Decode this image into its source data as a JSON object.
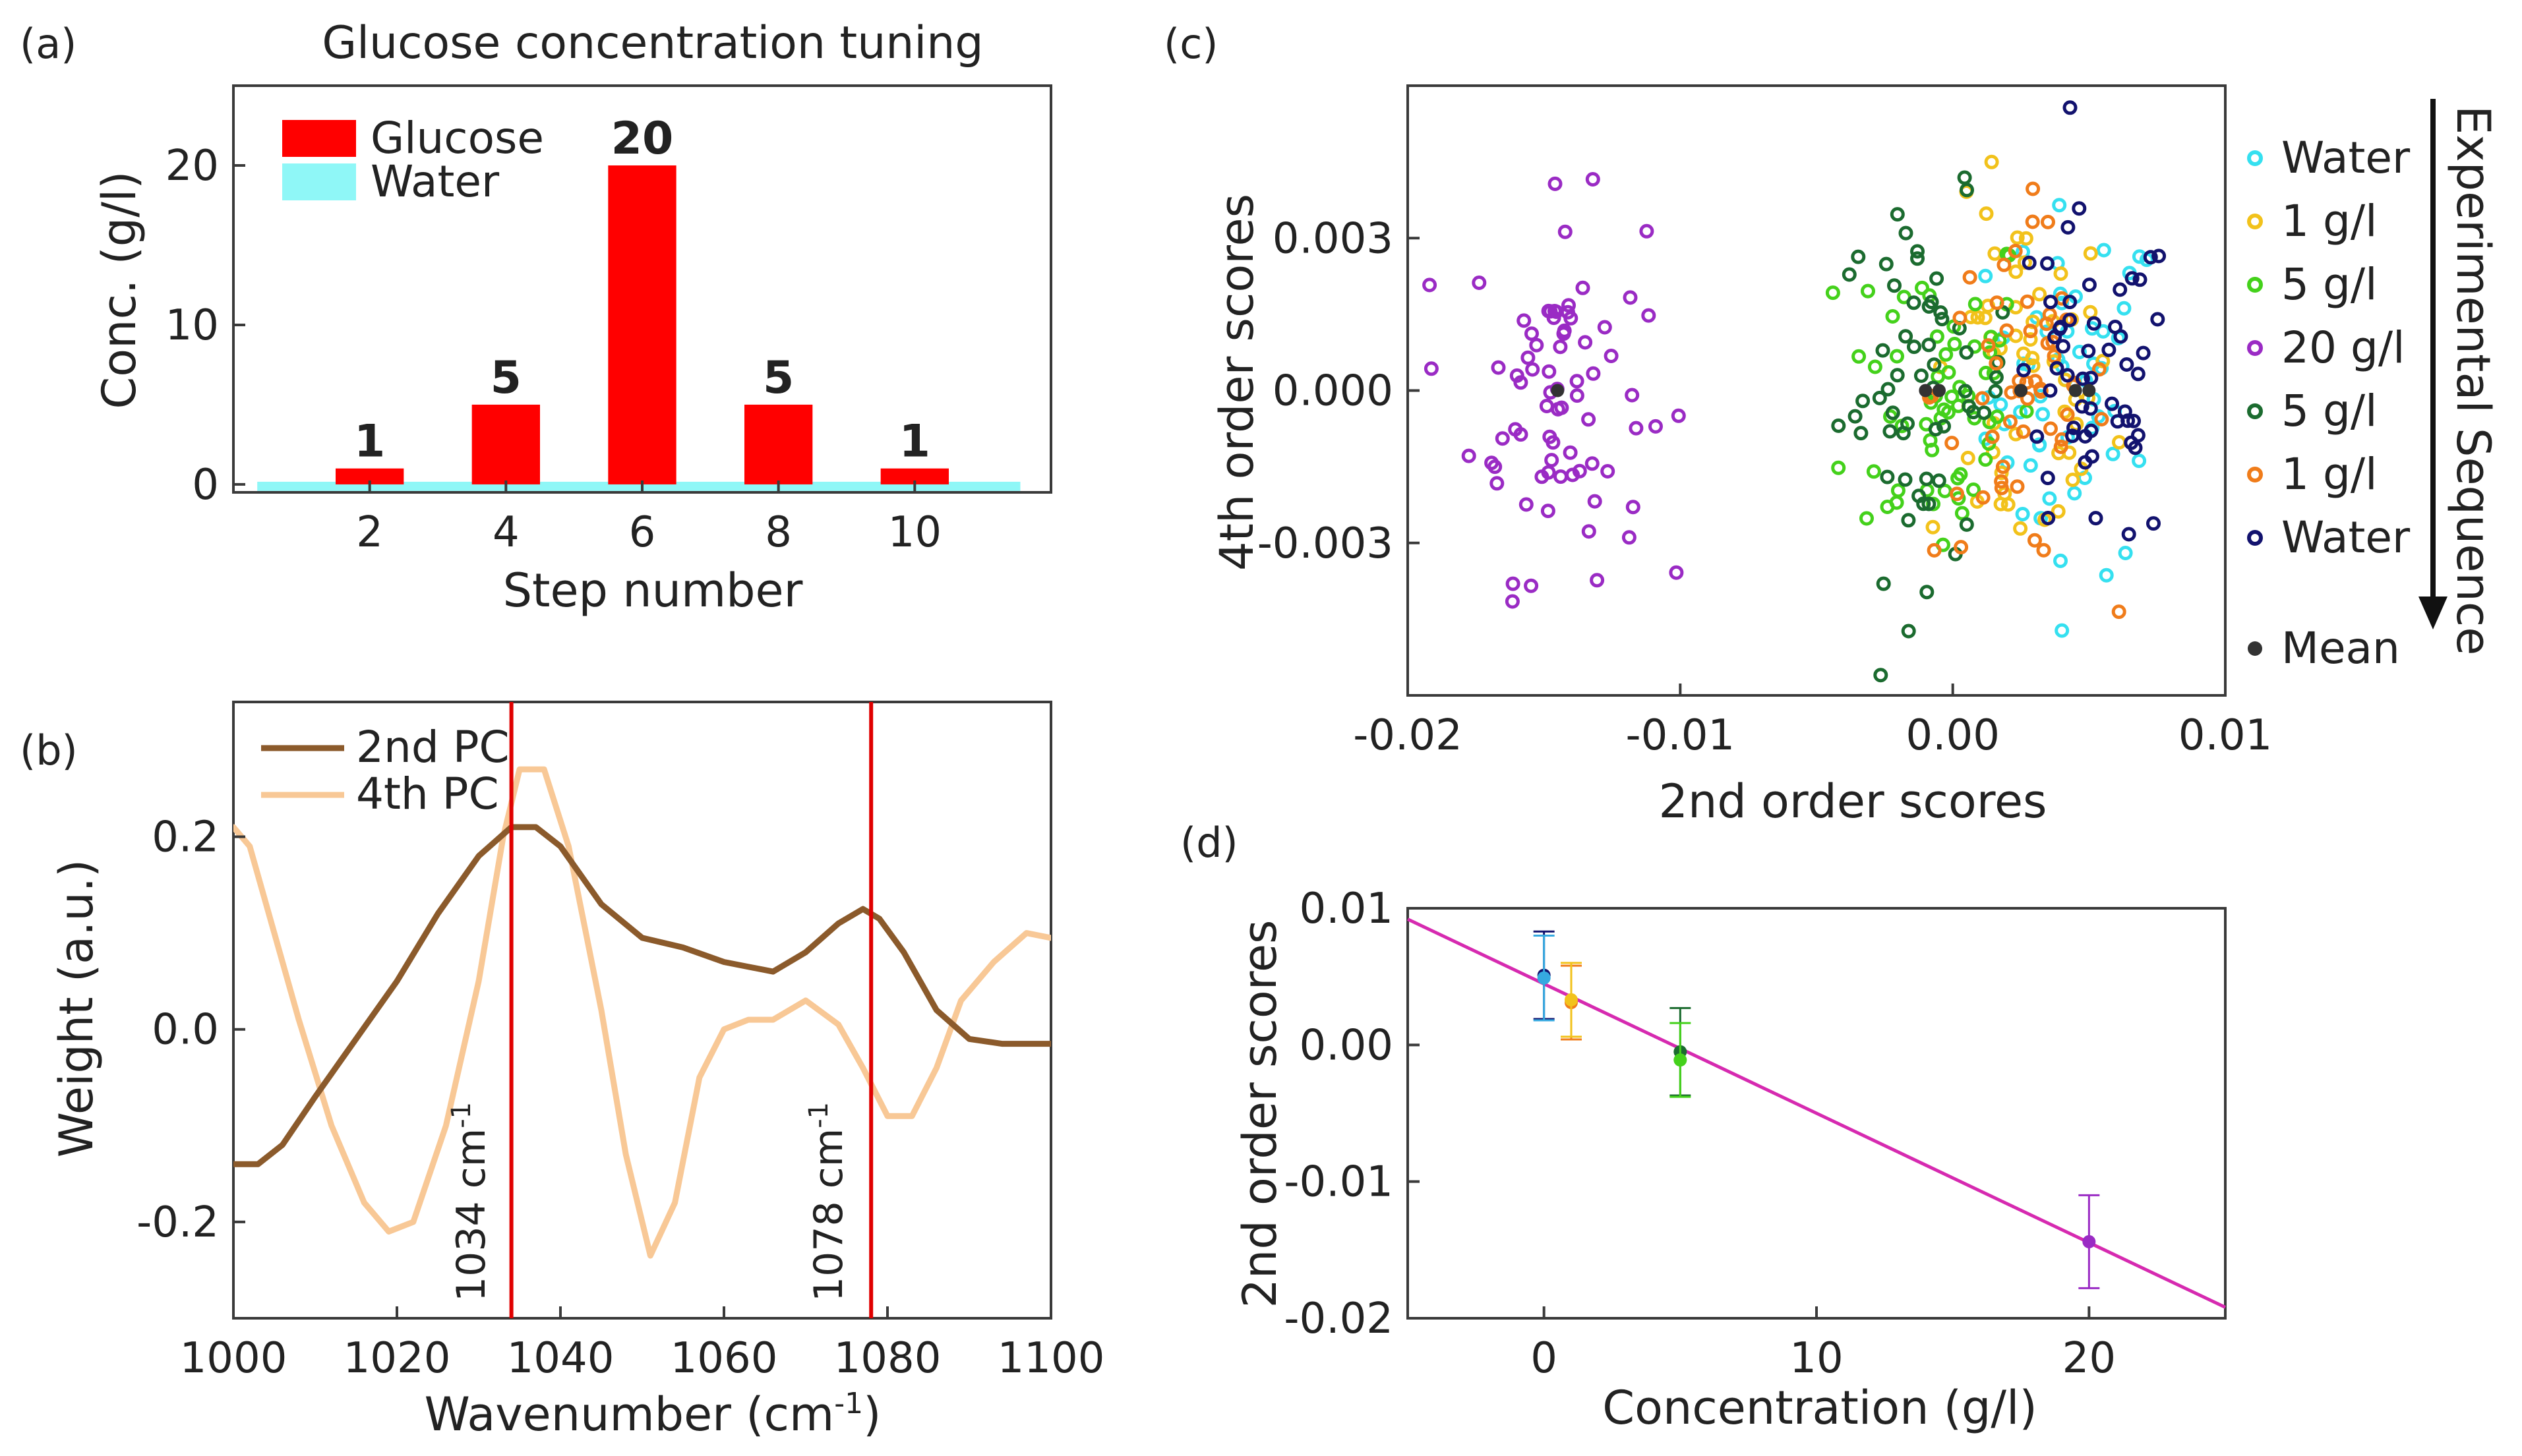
{
  "chart_data": [
    {
      "panel": "(a)",
      "type": "bar",
      "title": "Glucose concentration tuning",
      "xlabel": "Step number",
      "ylabel": "Conc. (g/l)",
      "xlim": [
        0,
        12
      ],
      "ylim": [
        -0.5,
        25
      ],
      "xticks": [
        2,
        4,
        6,
        8,
        10
      ],
      "yticks": [
        0,
        10,
        20
      ],
      "series": [
        {
          "name": "Glucose",
          "color": "#ff0000",
          "x": [
            2,
            4,
            6,
            8,
            10
          ],
          "values": [
            1,
            5,
            20,
            5,
            1
          ]
        },
        {
          "name": "Water",
          "color": "#8ff7f7",
          "x": [],
          "values": []
        }
      ],
      "data_labels": [
        "1",
        "5",
        "20",
        "5",
        "1"
      ],
      "legend": [
        "Glucose",
        "Water"
      ]
    },
    {
      "panel": "(b)",
      "type": "line",
      "xlabel": "Wavenumber (cm",
      "xlabel_sup": "-1",
      "xlabel_end": ")",
      "ylabel": "Weight (a.u.)",
      "xlim": [
        1000,
        1100
      ],
      "ylim": [
        -0.3,
        0.34
      ],
      "xticks": [
        1000,
        1020,
        1040,
        1060,
        1080,
        1100
      ],
      "yticks": [
        -0.2,
        0.0,
        0.2
      ],
      "ytick_labels": [
        "-0.2",
        "0.0",
        "0.2"
      ],
      "series": [
        {
          "name": "2nd PC",
          "color": "#8b5a2b",
          "x": [
            1000,
            1003,
            1006,
            1010,
            1015,
            1020,
            1025,
            1030,
            1034,
            1037,
            1040,
            1045,
            1050,
            1055,
            1060,
            1066,
            1070,
            1074,
            1077,
            1079,
            1082,
            1086,
            1090,
            1094,
            1100
          ],
          "values": [
            -0.14,
            -0.14,
            -0.12,
            -0.07,
            -0.01,
            0.05,
            0.12,
            0.18,
            0.21,
            0.21,
            0.19,
            0.13,
            0.095,
            0.085,
            0.07,
            0.06,
            0.08,
            0.11,
            0.125,
            0.115,
            0.08,
            0.02,
            -0.01,
            -0.015,
            -0.015
          ]
        },
        {
          "name": "4th PC",
          "color": "#f8c896",
          "x": [
            1000,
            1002,
            1005,
            1008,
            1012,
            1016,
            1019,
            1022,
            1026,
            1030,
            1033,
            1035,
            1038,
            1041,
            1045,
            1048,
            1051,
            1054,
            1057,
            1060,
            1063,
            1066,
            1070,
            1074,
            1077,
            1080,
            1083,
            1086,
            1089,
            1093,
            1097,
            1100
          ],
          "values": [
            0.21,
            0.19,
            0.1,
            0.01,
            -0.1,
            -0.18,
            -0.21,
            -0.2,
            -0.1,
            0.05,
            0.2,
            0.27,
            0.27,
            0.19,
            0.02,
            -0.13,
            -0.235,
            -0.18,
            -0.05,
            0.0,
            0.01,
            0.01,
            0.03,
            0.005,
            -0.04,
            -0.09,
            -0.09,
            -0.04,
            0.03,
            0.07,
            0.1,
            0.095
          ]
        }
      ],
      "vlines": [
        {
          "x": 1034,
          "color": "#e00000",
          "label": "1034 cm",
          "sup": "-1"
        },
        {
          "x": 1078,
          "color": "#e00000",
          "label": "1078 cm",
          "sup": "-1"
        }
      ],
      "legend": [
        "2nd PC",
        "4th PC"
      ]
    },
    {
      "panel": "(c)",
      "type": "scatter",
      "xlabel": "2nd order scores",
      "ylabel": "4th order scores",
      "xlim": [
        -0.02,
        0.01
      ],
      "ylim": [
        -0.006,
        0.006
      ],
      "xticks": [
        -0.02,
        -0.01,
        0.0,
        0.01
      ],
      "xtick_labels": [
        "-0.02",
        "-0.01",
        "0.00",
        "0.01"
      ],
      "yticks": [
        -0.003,
        0.0,
        0.003
      ],
      "ytick_labels": [
        "-0.003",
        "0.000",
        "0.003"
      ],
      "sequence_label": "Experimental Sequence",
      "series": [
        {
          "name": "Water",
          "color": "#35e0f0",
          "mean": [
            0.0045,
            0.0
          ],
          "sx": 0.0016,
          "sy": 0.0018,
          "n": 55
        },
        {
          "name": "1 g/l",
          "color": "#f2c21b",
          "mean": [
            0.0025,
            0.0
          ],
          "sx": 0.0017,
          "sy": 0.0018,
          "n": 55
        },
        {
          "name": "5 g/l",
          "color": "#44d11b",
          "mean": [
            -0.0005,
            0.0
          ],
          "sx": 0.0017,
          "sy": 0.0018,
          "n": 60
        },
        {
          "name": "20 g/l",
          "color": "#9a2bc4",
          "mean": [
            -0.0145,
            0.0
          ],
          "sx": 0.0016,
          "sy": 0.0018,
          "n": 75
        },
        {
          "name": "5 g/l",
          "color": "#1b6b2f",
          "mean": [
            -0.001,
            0.0
          ],
          "sx": 0.0016,
          "sy": 0.0018,
          "n": 60
        },
        {
          "name": "1 g/l",
          "color": "#f07c1a",
          "mean": [
            0.0025,
            0.0
          ],
          "sx": 0.0016,
          "sy": 0.0017,
          "n": 55
        },
        {
          "name": "Water",
          "color": "#12126e",
          "mean": [
            0.005,
            0.0
          ],
          "sx": 0.0016,
          "sy": 0.0017,
          "n": 55
        }
      ],
      "mean_label": "Mean",
      "mean_color": "#333333"
    },
    {
      "panel": "(d)",
      "type": "scatter",
      "xlabel": "Concentration (g/l)",
      "ylabel": "2nd order scores",
      "xlim": [
        -5,
        25
      ],
      "ylim": [
        -0.02,
        0.01
      ],
      "xticks": [
        0,
        10,
        20
      ],
      "yticks": [
        -0.02,
        -0.01,
        0.0,
        0.01
      ],
      "ytick_labels": [
        "-0.02",
        "-0.01",
        "0.00",
        "0.01"
      ],
      "fit_line": {
        "color": "#d62ab0",
        "x": [
          -5,
          25
        ],
        "y": [
          0.0092,
          -0.0192
        ]
      },
      "points": [
        {
          "x": 0,
          "y": 0.0051,
          "err": 0.0032,
          "color": "#12126e"
        },
        {
          "x": 0,
          "y": 0.0049,
          "err": 0.0031,
          "color": "#35a9e0"
        },
        {
          "x": 1,
          "y": 0.0031,
          "err": 0.0027,
          "color": "#f07c1a"
        },
        {
          "x": 1,
          "y": 0.0033,
          "err": 0.0027,
          "color": "#f2c21b"
        },
        {
          "x": 5,
          "y": -0.0005,
          "err": 0.0032,
          "color": "#1b6b2f"
        },
        {
          "x": 5,
          "y": -0.0011,
          "err": 0.0027,
          "color": "#44d11b"
        },
        {
          "x": 20,
          "y": -0.0144,
          "err": 0.0034,
          "color": "#9a2bc4"
        }
      ]
    }
  ]
}
